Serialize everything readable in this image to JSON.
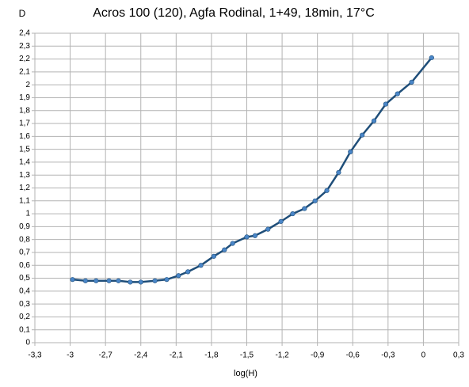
{
  "chart_data": {
    "type": "line",
    "title": "Acros 100 (120), Agfa Rodinal, 1+49, 18min, 17°C",
    "y_label": "D",
    "x_label": "log(H)",
    "x": [
      -2.98,
      -2.87,
      -2.78,
      -2.67,
      -2.59,
      -2.49,
      -2.4,
      -2.28,
      -2.18,
      -2.08,
      -2.0,
      -1.89,
      -1.78,
      -1.69,
      -1.62,
      -1.5,
      -1.43,
      -1.32,
      -1.21,
      -1.11,
      -1.01,
      -0.92,
      -0.82,
      -0.72,
      -0.62,
      -0.52,
      -0.42,
      -0.32,
      -0.22,
      -0.1,
      0.07
    ],
    "values": [
      0.49,
      0.48,
      0.48,
      0.48,
      0.48,
      0.47,
      0.47,
      0.48,
      0.49,
      0.52,
      0.55,
      0.6,
      0.67,
      0.72,
      0.77,
      0.82,
      0.83,
      0.88,
      0.94,
      1.0,
      1.04,
      1.1,
      1.18,
      1.32,
      1.48,
      1.61,
      1.72,
      1.85,
      1.93,
      2.02,
      2.21
    ],
    "color": "#1f4e79",
    "marker_color": "#4a86c8",
    "xlim": [
      -3.3,
      0.3
    ],
    "ylim": [
      0,
      2.4
    ],
    "xticks": [
      {
        "value": -3.3,
        "label": "-3,3"
      },
      -3,
      {
        "value": -2.7,
        "label": "-2,7"
      },
      {
        "value": -2.4,
        "label": "-2,4"
      },
      {
        "value": -2.1,
        "label": "-2,1"
      },
      {
        "value": -1.8,
        "label": "-1,8"
      },
      {
        "value": -1.5,
        "label": "-1,5"
      },
      {
        "value": -1.2,
        "label": "-1,2"
      },
      {
        "value": -0.9,
        "label": "-0,9"
      },
      {
        "value": -0.6,
        "label": "-0,6"
      },
      {
        "value": -0.3,
        "label": "-0,3"
      },
      0,
      {
        "value": 0.3,
        "label": "0,3"
      }
    ],
    "yticks": [
      0,
      {
        "value": 0.1,
        "label": "0,1"
      },
      {
        "value": 0.2,
        "label": "0,2"
      },
      {
        "value": 0.3,
        "label": "0,3"
      },
      {
        "value": 0.4,
        "label": "0,4"
      },
      {
        "value": 0.5,
        "label": "0,5"
      },
      {
        "value": 0.6,
        "label": "0,6"
      },
      {
        "value": 0.7,
        "label": "0,7"
      },
      {
        "value": 0.8,
        "label": "0,8"
      },
      {
        "value": 0.9,
        "label": "0,9"
      },
      1,
      {
        "value": 1.1,
        "label": "1,1"
      },
      {
        "value": 1.2,
        "label": "1,2"
      },
      {
        "value": 1.3,
        "label": "1,3"
      },
      {
        "value": 1.4,
        "label": "1,4"
      },
      {
        "value": 1.5,
        "label": "1,5"
      },
      {
        "value": 1.6,
        "label": "1,6"
      },
      {
        "value": 1.7,
        "label": "1,7"
      },
      {
        "value": 1.8,
        "label": "1,8"
      },
      {
        "value": 1.9,
        "label": "1,9"
      },
      2,
      {
        "value": 2.1,
        "label": "2,1"
      },
      {
        "value": 2.2,
        "label": "2,2"
      },
      {
        "value": 2.3,
        "label": "2,3"
      },
      {
        "value": 2.4,
        "label": "2,4"
      }
    ],
    "grid": true
  }
}
